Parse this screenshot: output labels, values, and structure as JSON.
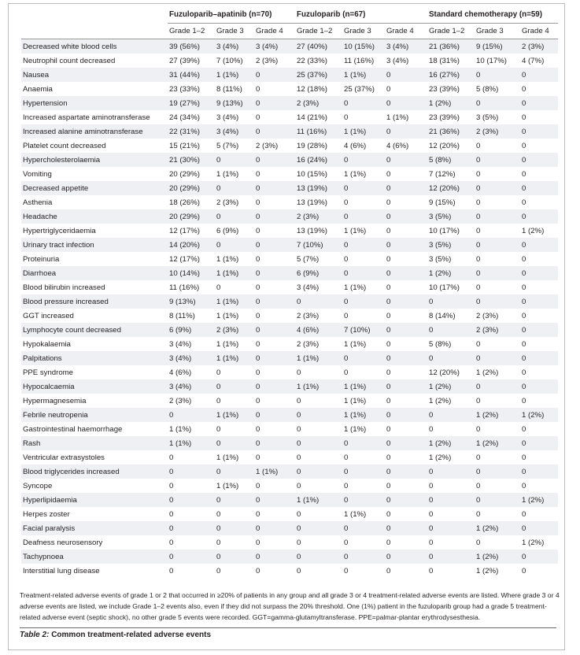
{
  "table": {
    "group_headers": [
      "Fuzuloparib–apatinib (n=70)",
      "Fuzuloparib (n=67)",
      "Standard chemotherapy (n=59)"
    ],
    "grade_headers": [
      "Grade 1–2",
      "Grade 3",
      "Grade 4",
      "Grade 1–2",
      "Grade 3",
      "Grade 4",
      "Grade 1–2",
      "Grade 3",
      "Grade 4"
    ],
    "rows": [
      {
        "event": "Decreased white blood cells",
        "values": [
          "39 (56%)",
          "3 (4%)",
          "3 (4%)",
          "27 (40%)",
          "10 (15%)",
          "3 (4%)",
          "21 (36%)",
          "9 (15%)",
          "2 (3%)"
        ]
      },
      {
        "event": "Neutrophil count decreased",
        "values": [
          "27 (39%)",
          "7 (10%)",
          "2 (3%)",
          "22 (33%)",
          "11 (16%)",
          "3 (4%)",
          "18 (31%)",
          "10 (17%)",
          "4 (7%)"
        ]
      },
      {
        "event": "Nausea",
        "values": [
          "31 (44%)",
          "1 (1%)",
          "0",
          "25 (37%)",
          "1 (1%)",
          "0",
          "16 (27%)",
          "0",
          "0"
        ]
      },
      {
        "event": "Anaemia",
        "values": [
          "23 (33%)",
          "8 (11%)",
          "0",
          "12 (18%)",
          "25 (37%)",
          "0",
          "23 (39%)",
          "5 (8%)",
          "0"
        ]
      },
      {
        "event": "Hypertension",
        "values": [
          "19 (27%)",
          "9 (13%)",
          "0",
          "2 (3%)",
          "0",
          "0",
          "1 (2%)",
          "0",
          "0"
        ]
      },
      {
        "event": "Increased aspartate aminotransferase",
        "values": [
          "24 (34%)",
          "3 (4%)",
          "0",
          "14 (21%)",
          "0",
          "1 (1%)",
          "23 (39%)",
          "3 (5%)",
          "0"
        ]
      },
      {
        "event": "Increased alanine aminotransferase",
        "values": [
          "22 (31%)",
          "3 (4%)",
          "0",
          "11 (16%)",
          "1 (1%)",
          "0",
          "21 (36%)",
          "2 (3%)",
          "0"
        ]
      },
      {
        "event": "Platelet count decreased",
        "values": [
          "15 (21%)",
          "5 (7%)",
          "2 (3%)",
          "19 (28%)",
          "4 (6%)",
          "4 (6%)",
          "12 (20%)",
          "0",
          "0"
        ]
      },
      {
        "event": "Hypercholesterolaemia",
        "values": [
          "21 (30%)",
          "0",
          "0",
          "16 (24%)",
          "0",
          "0",
          "5 (8%)",
          "0",
          "0"
        ]
      },
      {
        "event": "Vomiting",
        "values": [
          "20 (29%)",
          "1 (1%)",
          "0",
          "10 (15%)",
          "1 (1%)",
          "0",
          "7 (12%)",
          "0",
          "0"
        ]
      },
      {
        "event": "Decreased appetite",
        "values": [
          "20 (29%)",
          "0",
          "0",
          "13 (19%)",
          "0",
          "0",
          "12 (20%)",
          "0",
          "0"
        ]
      },
      {
        "event": "Asthenia",
        "values": [
          "18 (26%)",
          "2 (3%)",
          "0",
          "13 (19%)",
          "0",
          "0",
          "9 (15%)",
          "0",
          "0"
        ]
      },
      {
        "event": "Headache",
        "values": [
          "20 (29%)",
          "0",
          "0",
          "2 (3%)",
          "0",
          "0",
          "3 (5%)",
          "0",
          "0"
        ]
      },
      {
        "event": "Hypertriglyceridaemia",
        "values": [
          "12 (17%)",
          "6 (9%)",
          "0",
          "13 (19%)",
          "1 (1%)",
          "0",
          "10 (17%)",
          "0",
          "1 (2%)"
        ]
      },
      {
        "event": "Urinary tract infection",
        "values": [
          "14 (20%)",
          "0",
          "0",
          "7 (10%)",
          "0",
          "0",
          "3 (5%)",
          "0",
          "0"
        ]
      },
      {
        "event": "Proteinuria",
        "values": [
          "12 (17%)",
          "1 (1%)",
          "0",
          "5 (7%)",
          "0",
          "0",
          "3 (5%)",
          "0",
          "0"
        ]
      },
      {
        "event": "Diarrhoea",
        "values": [
          "10 (14%)",
          "1 (1%)",
          "0",
          "6 (9%)",
          "0",
          "0",
          "1 (2%)",
          "0",
          "0"
        ]
      },
      {
        "event": "Blood bilirubin increased",
        "values": [
          "11 (16%)",
          "0",
          "0",
          "3 (4%)",
          "1 (1%)",
          "0",
          "10 (17%)",
          "0",
          "0"
        ]
      },
      {
        "event": "Blood pressure increased",
        "values": [
          "9 (13%)",
          "1 (1%)",
          "0",
          "0",
          "0",
          "0",
          "0",
          "0",
          "0"
        ]
      },
      {
        "event": "GGT increased",
        "values": [
          "8 (11%)",
          "1 (1%)",
          "0",
          "2 (3%)",
          "0",
          "0",
          "8 (14%)",
          "2 (3%)",
          "0"
        ]
      },
      {
        "event": "Lymphocyte count decreased",
        "values": [
          "6 (9%)",
          "2 (3%)",
          "0",
          "4 (6%)",
          "7 (10%)",
          "0",
          "0",
          "2 (3%)",
          "0"
        ]
      },
      {
        "event": "Hypokalaemia",
        "values": [
          "3 (4%)",
          "1 (1%)",
          "0",
          "2 (3%)",
          "1 (1%)",
          "0",
          "5 (8%)",
          "0",
          "0"
        ]
      },
      {
        "event": "Palpitations",
        "values": [
          "3 (4%)",
          "1 (1%)",
          "0",
          "1 (1%)",
          "0",
          "0",
          "0",
          "0",
          "0"
        ]
      },
      {
        "event": "PPE syndrome",
        "values": [
          "4 (6%)",
          "0",
          "0",
          "0",
          "0",
          "0",
          "12 (20%)",
          "1 (2%)",
          "0"
        ]
      },
      {
        "event": "Hypocalcaemia",
        "values": [
          "3 (4%)",
          "0",
          "0",
          "1 (1%)",
          "1 (1%)",
          "0",
          "1 (2%)",
          "0",
          "0"
        ]
      },
      {
        "event": "Hypermagnesemia",
        "values": [
          "2 (3%)",
          "0",
          "0",
          "0",
          "1 (1%)",
          "0",
          "1 (2%)",
          "0",
          "0"
        ]
      },
      {
        "event": "Febrile neutropenia",
        "values": [
          "0",
          "1 (1%)",
          "0",
          "0",
          "1 (1%)",
          "0",
          "0",
          "1 (2%)",
          "1 (2%)"
        ]
      },
      {
        "event": "Gastrointestinal haemorrhage",
        "values": [
          "1 (1%)",
          "0",
          "0",
          "0",
          "1 (1%)",
          "0",
          "0",
          "0",
          "0"
        ]
      },
      {
        "event": "Rash",
        "values": [
          "1 (1%)",
          "0",
          "0",
          "0",
          "0",
          "0",
          "1 (2%)",
          "1 (2%)",
          "0"
        ]
      },
      {
        "event": "Ventricular extrasystoles",
        "values": [
          "0",
          "1 (1%)",
          "0",
          "0",
          "0",
          "0",
          "1 (2%)",
          "0",
          "0"
        ]
      },
      {
        "event": "Blood triglycerides increased",
        "values": [
          "0",
          "0",
          "1 (1%)",
          "0",
          "0",
          "0",
          "0",
          "0",
          "0"
        ]
      },
      {
        "event": "Syncope",
        "values": [
          "0",
          "1 (1%)",
          "0",
          "0",
          "0",
          "0",
          "0",
          "0",
          "0"
        ]
      },
      {
        "event": "Hyperlipidaemia",
        "values": [
          "0",
          "0",
          "0",
          "1 (1%)",
          "0",
          "0",
          "0",
          "0",
          "1 (2%)"
        ]
      },
      {
        "event": "Herpes zoster",
        "values": [
          "0",
          "0",
          "0",
          "0",
          "1 (1%)",
          "0",
          "0",
          "0",
          "0"
        ]
      },
      {
        "event": "Facial paralysis",
        "values": [
          "0",
          "0",
          "0",
          "0",
          "0",
          "0",
          "0",
          "1 (2%)",
          "0"
        ]
      },
      {
        "event": "Deafness neurosensory",
        "values": [
          "0",
          "0",
          "0",
          "0",
          "0",
          "0",
          "0",
          "0",
          "1 (2%)"
        ]
      },
      {
        "event": "Tachypnoea",
        "values": [
          "0",
          "0",
          "0",
          "0",
          "0",
          "0",
          "0",
          "1 (2%)",
          "0"
        ]
      },
      {
        "event": "Interstitial lung disease",
        "values": [
          "0",
          "0",
          "0",
          "0",
          "0",
          "0",
          "0",
          "1 (2%)",
          "0"
        ]
      }
    ]
  },
  "footnote": "Treatment-related adverse events of grade 1 or 2 that occurred in ≥20% of patients in any group and all grade 3 or 4 treatment-related adverse events are listed. Where grade 3 or 4 adverse events are listed, we include Grade 1–2 events also, even if they did not surpass the 20% threshold. One (1%) patient in the fuzuloparib group had a grade 5 treatment-related adverse event (septic shock), no other grade 5 events were recorded. GGT=gamma-glutamyltransferase. PPE=palmar-plantar erythrodysesthesia.",
  "caption": {
    "label": "Table 2:",
    "text": "Common treatment-related adverse events"
  }
}
